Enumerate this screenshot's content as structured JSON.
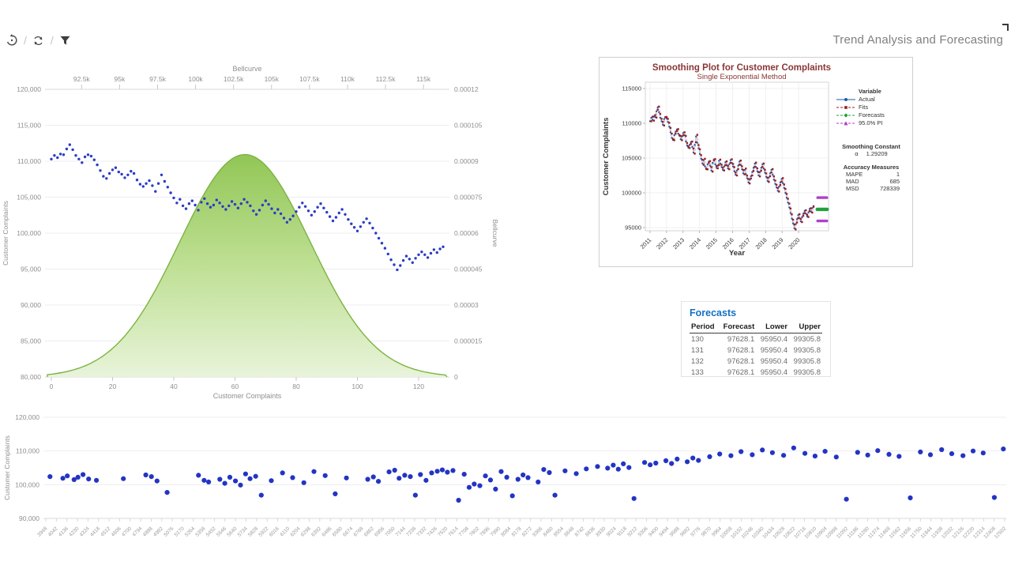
{
  "header": {
    "title": "Trend Analysis and Forecasting",
    "toolbar_icons": [
      "reset-history",
      "refresh",
      "filter"
    ],
    "separator": "/"
  },
  "colors": {
    "scatter_blue": "#2b3cc6",
    "bell_green_stroke": "#7cb342",
    "bell_green_top": "#8cc34d",
    "axis_text": "#8f8f8f",
    "grid": "#ededf2",
    "minitab_title": "#8a3636",
    "actual_blue": "#2057a7",
    "fits_red": "#9c1f1f",
    "forecast_green": "#22a03c",
    "pi_magenta": "#b13fc9",
    "forecasts_title_blue": "#1371c3"
  },
  "forecasts_panel": {
    "title": "Forecasts",
    "columns": [
      "Period",
      "Forecast",
      "Lower",
      "Upper"
    ],
    "rows": [
      [
        "130",
        "97628.1",
        "95950.4",
        "99305.8"
      ],
      [
        "131",
        "97628.1",
        "95950.4",
        "99305.8"
      ],
      [
        "132",
        "97628.1",
        "95950.4",
        "99305.8"
      ],
      [
        "133",
        "97628.1",
        "95950.4",
        "99305.8"
      ]
    ]
  },
  "chart_data": [
    {
      "name": "main_chart",
      "type": "scatter",
      "x_bottom": {
        "label": "Customer Complaints",
        "range": [
          0,
          128
        ],
        "ticks": [
          {
            "v": 0,
            "label": "0"
          },
          {
            "v": 20,
            "label": "20"
          },
          {
            "v": 40,
            "label": "40"
          },
          {
            "v": 60,
            "label": "60"
          },
          {
            "v": 80,
            "label": "80"
          },
          {
            "v": 100,
            "label": "100"
          },
          {
            "v": 120,
            "label": "120"
          }
        ]
      },
      "y_left": {
        "label": "Customer Complaints",
        "range": [
          80000,
          120000
        ],
        "ticks": [
          {
            "v": 80000,
            "label": "80,000"
          },
          {
            "v": 85000,
            "label": "85,000"
          },
          {
            "v": 90000,
            "label": "90,000"
          },
          {
            "v": 95000,
            "label": "95,000"
          },
          {
            "v": 100000,
            "label": "100,000"
          },
          {
            "v": 105000,
            "label": "105,000"
          },
          {
            "v": 110000,
            "label": "110,000"
          },
          {
            "v": 115000,
            "label": "115,000"
          },
          {
            "v": 120000,
            "label": "120,000"
          }
        ]
      },
      "x_top": {
        "label": "Bellcurve",
        "range": [
          90250,
          116550
        ],
        "ticks": [
          {
            "v": 92500,
            "label": "92.5k"
          },
          {
            "v": 95000,
            "label": "95k"
          },
          {
            "v": 97500,
            "label": "97.5k"
          },
          {
            "v": 100000,
            "label": "100k"
          },
          {
            "v": 102500,
            "label": "102.5k"
          },
          {
            "v": 105000,
            "label": "105k"
          },
          {
            "v": 107500,
            "label": "107.5k"
          },
          {
            "v": 110000,
            "label": "110k"
          },
          {
            "v": 112500,
            "label": "112.5k"
          },
          {
            "v": 115000,
            "label": "115k"
          }
        ]
      },
      "y_right": {
        "label": "Bellcurve",
        "range": [
          0,
          0.00012
        ],
        "ticks": [
          {
            "v": 0,
            "label": "0"
          },
          {
            "v": 1.5e-05,
            "label": "0.000015"
          },
          {
            "v": 3e-05,
            "label": "0.00003"
          },
          {
            "v": 4.5e-05,
            "label": "0.000045"
          },
          {
            "v": 6e-05,
            "label": "0.00006"
          },
          {
            "v": 7.5e-05,
            "label": "0.000075"
          },
          {
            "v": 9e-05,
            "label": "0.00009"
          },
          {
            "v": 0.000105,
            "label": "0.000105"
          },
          {
            "v": 0.00012,
            "label": "0.00012"
          }
        ]
      },
      "bellcurve": {
        "mean": 103250,
        "sigma": 4300
      },
      "points": [
        110300,
        110800,
        110500,
        111000,
        110900,
        111700,
        112300,
        111600,
        110800,
        110300,
        109800,
        110600,
        110900,
        110700,
        110200,
        109500,
        108700,
        107900,
        107600,
        108300,
        108800,
        109100,
        108500,
        108200,
        107700,
        108100,
        108600,
        108300,
        107400,
        106800,
        106500,
        106900,
        107300,
        106600,
        105800,
        106900,
        108100,
        107200,
        106400,
        105600,
        104900,
        104200,
        104700,
        103800,
        103400,
        104100,
        104500,
        103900,
        103200,
        104300,
        104800,
        104100,
        103600,
        103900,
        104600,
        104200,
        103700,
        103300,
        103800,
        104400,
        104000,
        103500,
        104100,
        104700,
        104300,
        103800,
        103100,
        102600,
        103200,
        103900,
        104500,
        104000,
        103400,
        102800,
        103300,
        102700,
        102100,
        101500,
        101900,
        102400,
        103000,
        103600,
        104200,
        103700,
        103100,
        102500,
        103000,
        103600,
        104100,
        103500,
        102900,
        102300,
        101700,
        102200,
        102800,
        103300,
        102600,
        101900,
        101300,
        100800,
        100300,
        100900,
        101500,
        102000,
        101400,
        100700,
        100000,
        99300,
        98600,
        97900,
        97100,
        96300,
        95600,
        94900,
        95500,
        96200,
        96800,
        96400,
        95900,
        96500,
        97000,
        97400,
        97000,
        96600,
        97200,
        97700,
        97300,
        97800,
        98100
      ]
    },
    {
      "name": "smoothing_plot",
      "type": "line",
      "title": "Smoothing Plot for Customer Complaints",
      "subtitle": "Single Exponential Method",
      "xlabel": "Year",
      "ylabel": "Customer Complaints",
      "x_ticks": [
        2011,
        2012,
        2013,
        2014,
        2015,
        2016,
        2017,
        2018,
        2019,
        2020
      ],
      "y_ticks": [
        {
          "v": 95000,
          "label": "95000"
        },
        {
          "v": 100000,
          "label": "100000"
        },
        {
          "v": 105000,
          "label": "105000"
        },
        {
          "v": 110000,
          "label": "110000"
        },
        {
          "v": 115000,
          "label": "115000"
        }
      ],
      "ylim": [
        93500,
        115000
      ],
      "legend": {
        "header": "Variable",
        "items": [
          {
            "label": "Actual",
            "marker": "circle",
            "color": "#2057a7"
          },
          {
            "label": "Fits",
            "marker": "square",
            "color": "#9c1f1f"
          },
          {
            "label": "Forecasts",
            "marker": "diamond",
            "color": "#22a03c"
          },
          {
            "label": "95.0% PI",
            "marker": "triangle",
            "color": "#b13fc9"
          }
        ]
      },
      "smoothing_constant": {
        "header": "Smoothing Constant",
        "alpha_symbol": "α",
        "alpha_value": "1.29209"
      },
      "accuracy": {
        "header": "Accuracy Measures",
        "rows": [
          [
            "MAPE",
            "1"
          ],
          [
            "MAD",
            "685"
          ],
          [
            "MSD",
            "728339"
          ]
        ]
      },
      "alpha": 1.29209,
      "forecast": {
        "value": 97628.1,
        "lower": 95950.4,
        "upper": 99305.8,
        "periods": [
          130,
          131,
          132,
          133
        ]
      }
    },
    {
      "name": "bottom_chart",
      "type": "scatter",
      "ylabel": "Customer Complaints",
      "y_ticks": [
        {
          "v": 90000,
          "label": "90,000"
        },
        {
          "v": 100000,
          "label": "100,000"
        },
        {
          "v": 110000,
          "label": "110,000"
        },
        {
          "v": 120000,
          "label": "120,000"
        }
      ],
      "ylim": [
        90000,
        120000
      ],
      "x_tick_labels": [
        3948,
        4042,
        4136,
        4230,
        4324,
        4418,
        4512,
        4606,
        4700,
        4794,
        4888,
        4982,
        5076,
        5170,
        5264,
        5358,
        5452,
        5546,
        5640,
        5734,
        5828,
        5922,
        6016,
        6110,
        6204,
        6298,
        6392,
        6486,
        6580,
        6674,
        6768,
        6862,
        6956,
        7050,
        7144,
        7238,
        7332,
        7426,
        7520,
        7614,
        7708,
        7802,
        7896,
        7990,
        8084,
        8178,
        8272,
        8366,
        8460,
        8554,
        8648,
        8742,
        8836,
        8930,
        9024,
        9118,
        9212,
        9306,
        9400,
        9494,
        9588,
        9682,
        9776,
        9870,
        9964,
        10058,
        10152,
        10246,
        10340,
        10434,
        10528,
        10622,
        10716,
        10810,
        10904,
        10998,
        11092,
        11186,
        11280,
        11374,
        11468,
        11562,
        11656,
        11750,
        11844,
        11938,
        12032,
        12126,
        12220,
        12314,
        12408,
        12502
      ],
      "xlim": [
        3948,
        12502
      ],
      "points": [
        [
          3985,
          102400
        ],
        [
          4100,
          101900
        ],
        [
          4140,
          102600
        ],
        [
          4200,
          101500
        ],
        [
          4235,
          102200
        ],
        [
          4280,
          103000
        ],
        [
          4330,
          101700
        ],
        [
          4400,
          101300
        ],
        [
          4640,
          101800
        ],
        [
          4840,
          102900
        ],
        [
          4890,
          102400
        ],
        [
          4940,
          101100
        ],
        [
          5030,
          97700
        ],
        [
          5310,
          102800
        ],
        [
          5360,
          101300
        ],
        [
          5400,
          100800
        ],
        [
          5500,
          101600
        ],
        [
          5545,
          100400
        ],
        [
          5590,
          102200
        ],
        [
          5640,
          101100
        ],
        [
          5685,
          99900
        ],
        [
          5730,
          103200
        ],
        [
          5770,
          101800
        ],
        [
          5820,
          102500
        ],
        [
          5870,
          96900
        ],
        [
          5960,
          101200
        ],
        [
          6060,
          103500
        ],
        [
          6150,
          102100
        ],
        [
          6250,
          100600
        ],
        [
          6340,
          103900
        ],
        [
          6440,
          102700
        ],
        [
          6530,
          97300
        ],
        [
          6630,
          102000
        ],
        [
          6820,
          101600
        ],
        [
          6870,
          102300
        ],
        [
          6915,
          101000
        ],
        [
          7010,
          103800
        ],
        [
          7060,
          104300
        ],
        [
          7100,
          101900
        ],
        [
          7150,
          102800
        ],
        [
          7200,
          102400
        ],
        [
          7245,
          96900
        ],
        [
          7290,
          103000
        ],
        [
          7340,
          101300
        ],
        [
          7390,
          103500
        ],
        [
          7440,
          104000
        ],
        [
          7485,
          104400
        ],
        [
          7530,
          103700
        ],
        [
          7580,
          104200
        ],
        [
          7630,
          95400
        ],
        [
          7680,
          103100
        ],
        [
          7725,
          99200
        ],
        [
          7770,
          100200
        ],
        [
          7820,
          99700
        ],
        [
          7870,
          102600
        ],
        [
          7915,
          101400
        ],
        [
          7960,
          98700
        ],
        [
          8010,
          103900
        ],
        [
          8060,
          102200
        ],
        [
          8110,
          96700
        ],
        [
          8160,
          101600
        ],
        [
          8205,
          102900
        ],
        [
          8250,
          102100
        ],
        [
          8340,
          100800
        ],
        [
          8390,
          104500
        ],
        [
          8440,
          103600
        ],
        [
          8490,
          96900
        ],
        [
          8580,
          104100
        ],
        [
          8680,
          103300
        ],
        [
          8770,
          104700
        ],
        [
          8870,
          105400
        ],
        [
          8960,
          104900
        ],
        [
          9010,
          105800
        ],
        [
          9055,
          104600
        ],
        [
          9100,
          106200
        ],
        [
          9150,
          105100
        ],
        [
          9195,
          95900
        ],
        [
          9290,
          106600
        ],
        [
          9340,
          105900
        ],
        [
          9390,
          106400
        ],
        [
          9480,
          107100
        ],
        [
          9530,
          106300
        ],
        [
          9580,
          107600
        ],
        [
          9670,
          106800
        ],
        [
          9720,
          107900
        ],
        [
          9770,
          107200
        ],
        [
          9870,
          108300
        ],
        [
          9960,
          109100
        ],
        [
          10060,
          108600
        ],
        [
          10150,
          109800
        ],
        [
          10250,
          108900
        ],
        [
          10340,
          110300
        ],
        [
          10430,
          109500
        ],
        [
          10530,
          108700
        ],
        [
          10620,
          110900
        ],
        [
          10720,
          109300
        ],
        [
          10810,
          108500
        ],
        [
          10900,
          109900
        ],
        [
          11000,
          108200
        ],
        [
          11090,
          95700
        ],
        [
          11190,
          109600
        ],
        [
          11280,
          108800
        ],
        [
          11370,
          110100
        ],
        [
          11470,
          109000
        ],
        [
          11560,
          108400
        ],
        [
          11660,
          96100
        ],
        [
          11750,
          109700
        ],
        [
          11840,
          108900
        ],
        [
          11940,
          110400
        ],
        [
          12030,
          109200
        ],
        [
          12130,
          108600
        ],
        [
          12220,
          110000
        ],
        [
          12310,
          109400
        ],
        [
          12410,
          96200
        ],
        [
          12490,
          110600
        ]
      ]
    }
  ]
}
